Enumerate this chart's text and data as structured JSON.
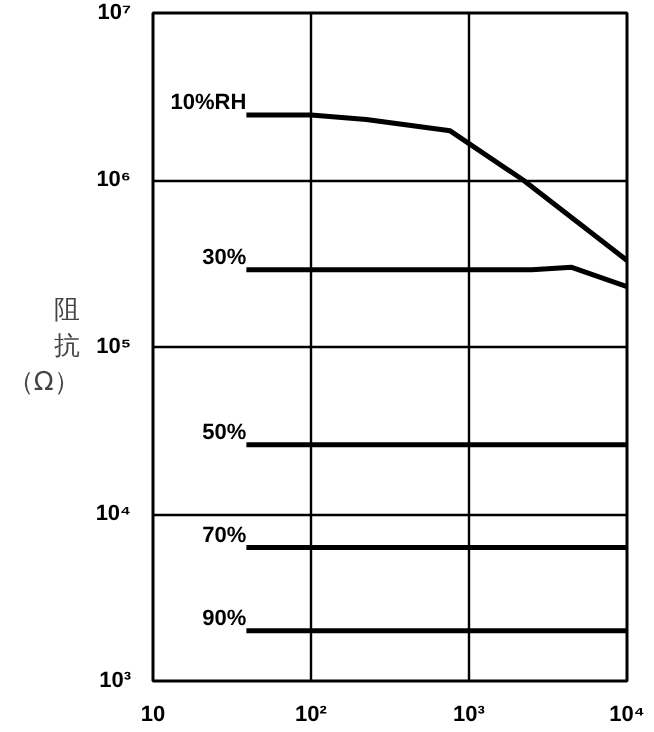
{
  "chart_data": {
    "type": "line",
    "ylabel": "阻抗（Ω）",
    "log": "xy",
    "grid": true,
    "legend": false,
    "xlim": [
      10,
      10000
    ],
    "ylim": [
      1000,
      10000000
    ],
    "xticks": [
      10,
      {
        "value": 100,
        "label": "10²"
      },
      {
        "value": 1000,
        "label": "10³"
      },
      {
        "value": 10000,
        "label": "10⁴"
      }
    ],
    "yticks": [
      {
        "value": 1000,
        "label": "10³"
      },
      {
        "value": 10000,
        "label": "10⁴"
      },
      {
        "value": 100000,
        "label": "10⁵"
      },
      {
        "value": 1000000,
        "label": "10⁶"
      },
      {
        "value": 10000000,
        "label": "10⁷"
      }
    ],
    "series": [
      {
        "name": "10%RH",
        "color": "#000000",
        "x": [
          39,
          100,
          224,
          760,
          2200,
          10000
        ],
        "values": [
          2450000,
          2450000,
          2300000,
          1970000,
          1000000,
          330000
        ]
      },
      {
        "name": "30%",
        "color": "#000000",
        "x": [
          39,
          1000,
          2500,
          4470,
          10000
        ],
        "values": [
          290000,
          290000,
          290000,
          300000,
          230000
        ]
      },
      {
        "name": "50%",
        "color": "#000000",
        "x": [
          39,
          10000
        ],
        "values": [
          26000,
          26000
        ]
      },
      {
        "name": "70%",
        "color": "#000000",
        "x": [
          39,
          10000
        ],
        "values": [
          6300,
          6300
        ]
      },
      {
        "name": "90%",
        "color": "#000000",
        "x": [
          39,
          10000
        ],
        "values": [
          2000,
          2000
        ]
      }
    ]
  }
}
